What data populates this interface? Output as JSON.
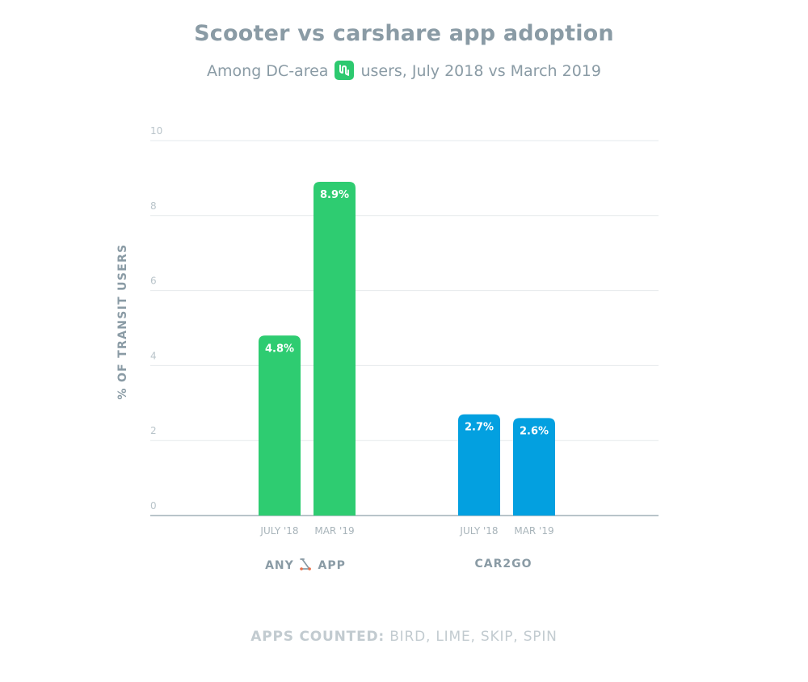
{
  "title": "Scooter vs carshare app adoption",
  "subtitle_before": "Among DC-area",
  "subtitle_logo_icon": "transit-app-logo-icon",
  "subtitle_after": "users, July 2018 vs March 2019",
  "footnote_label": "APPS COUNTED:",
  "footnote_apps": "BIRD, LIME, SKIP, SPIN",
  "colors": {
    "scooter": "#2ecc71",
    "car2go": "#03a0e0",
    "grid": "#e6eaec",
    "axis": "#b9c4ca"
  },
  "chart_data": {
    "type": "bar",
    "ylabel": "% OF TRANSIT USERS",
    "ylim": [
      0,
      10
    ],
    "yticks": [
      0,
      2,
      4,
      6,
      8,
      10
    ],
    "grid": true,
    "groups": [
      {
        "label_before": "ANY",
        "label_icon": "scooter-icon",
        "label_after": "APP",
        "color": "#2ecc71",
        "categories": [
          "JULY '18",
          "MAR '19"
        ],
        "values": [
          4.8,
          8.9
        ],
        "value_labels": [
          "4.8%",
          "8.9%"
        ]
      },
      {
        "label_before": "CAR2GO",
        "label_icon": "",
        "label_after": "",
        "color": "#03a0e0",
        "categories": [
          "JULY '18",
          "MAR '19"
        ],
        "values": [
          2.7,
          2.6
        ],
        "value_labels": [
          "2.7%",
          "2.6%"
        ]
      }
    ]
  }
}
